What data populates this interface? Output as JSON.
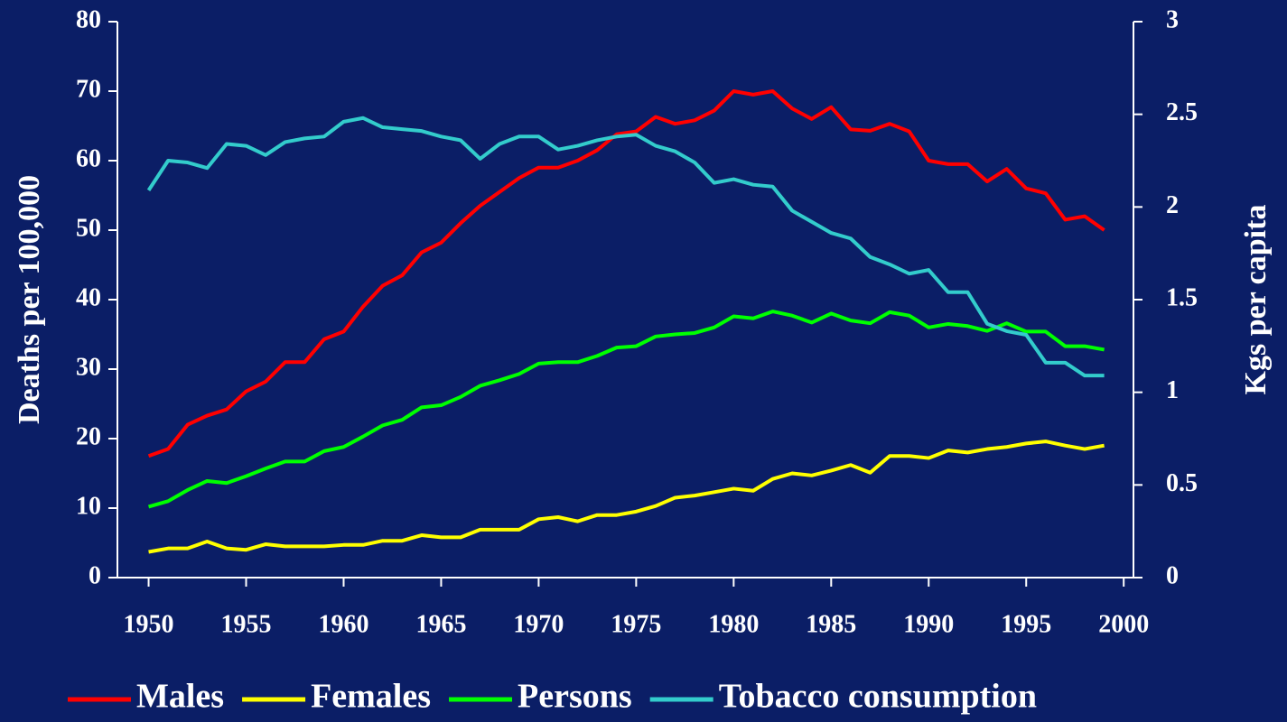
{
  "chart_data": {
    "type": "line",
    "x": [
      1950,
      1951,
      1952,
      1953,
      1954,
      1955,
      1956,
      1957,
      1958,
      1959,
      1960,
      1961,
      1962,
      1963,
      1964,
      1965,
      1966,
      1967,
      1968,
      1969,
      1970,
      1971,
      1972,
      1973,
      1974,
      1975,
      1976,
      1977,
      1978,
      1979,
      1980,
      1981,
      1982,
      1983,
      1984,
      1985,
      1986,
      1987,
      1988,
      1989,
      1990,
      1991,
      1992,
      1993,
      1994,
      1995,
      1996,
      1997,
      1998,
      1999
    ],
    "xlim": [
      1948.4,
      2000.5
    ],
    "xticks": [
      1950,
      1955,
      1960,
      1965,
      1970,
      1975,
      1980,
      1985,
      1990,
      1995,
      2000
    ],
    "ylim": [
      0,
      80
    ],
    "yticks": [
      0,
      10,
      20,
      30,
      40,
      50,
      60,
      70,
      80
    ],
    "y2lim": [
      0,
      3
    ],
    "y2ticks": [
      0,
      0.5,
      1,
      1.5,
      2,
      2.5,
      3
    ],
    "y_label": "Deaths per 100,000",
    "y2_label": "Kgs per capita",
    "series": [
      {
        "name": "Males",
        "color": "#ff0000",
        "values": [
          17.5,
          18.5,
          22,
          23.3,
          24.2,
          26.8,
          28.2,
          31,
          31,
          34.3,
          35.4,
          39,
          42,
          43.5,
          46.8,
          48.2,
          51,
          53.5,
          55.5,
          57.5,
          59,
          59,
          60,
          61.5,
          63.8,
          64.2,
          66.3,
          65.3,
          65.8,
          67.2,
          70,
          69.5,
          70,
          67.5,
          66,
          67.7,
          64.5,
          64.3,
          65.3,
          64.2,
          60,
          59.5,
          59.5,
          57,
          58.8,
          56,
          55.3,
          51.5,
          52,
          50
        ]
      },
      {
        "name": "Females",
        "color": "#ffff00",
        "values": [
          3.7,
          4.2,
          4.2,
          5.2,
          4.2,
          4,
          4.8,
          4.5,
          4.5,
          4.5,
          4.7,
          4.7,
          5.3,
          5.3,
          6.1,
          5.8,
          5.8,
          6.9,
          6.9,
          6.9,
          8.4,
          8.7,
          8.1,
          9,
          9,
          9.5,
          10.3,
          11.5,
          11.8,
          12.3,
          12.8,
          12.5,
          14.2,
          15,
          14.7,
          15.4,
          16.2,
          15.1,
          17.5,
          17.5,
          17.2,
          18.3,
          18,
          18.5,
          18.8,
          19.3,
          19.6,
          19,
          18.5,
          19
        ]
      },
      {
        "name": "Persons",
        "color": "#00ff00",
        "values": [
          10.2,
          11,
          12.6,
          13.9,
          13.6,
          14.6,
          15.7,
          16.7,
          16.7,
          18.2,
          18.8,
          20.3,
          21.9,
          22.7,
          24.5,
          24.8,
          26,
          27.6,
          28.4,
          29.3,
          30.8,
          31,
          31,
          31.9,
          33.1,
          33.3,
          34.7,
          35,
          35.2,
          36,
          37.6,
          37.3,
          38.3,
          37.7,
          36.7,
          38,
          37,
          36.6,
          38.2,
          37.7,
          36,
          36.5,
          36.2,
          35.5,
          36.6,
          35.4,
          35.4,
          33.3,
          33.3,
          32.8
        ]
      },
      {
        "name": "Tobacco consumption",
        "color": "#33cccc",
        "axis": "y2",
        "values": [
          2.09,
          2.25,
          2.24,
          2.21,
          2.34,
          2.33,
          2.28,
          2.35,
          2.37,
          2.38,
          2.46,
          2.48,
          2.43,
          2.42,
          2.41,
          2.38,
          2.36,
          2.26,
          2.34,
          2.38,
          2.38,
          2.31,
          2.33,
          2.36,
          2.38,
          2.39,
          2.33,
          2.3,
          2.24,
          2.13,
          2.15,
          2.12,
          2.11,
          1.98,
          1.92,
          1.86,
          1.83,
          1.73,
          1.69,
          1.64,
          1.66,
          1.54,
          1.54,
          1.37,
          1.33,
          1.31,
          1.16,
          1.16,
          1.09,
          1.09
        ]
      }
    ]
  }
}
